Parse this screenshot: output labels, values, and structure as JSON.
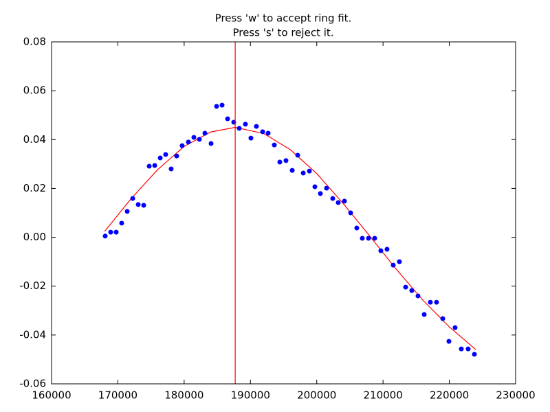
{
  "chart_data": {
    "type": "scatter",
    "title": [
      "Press 'w' to accept ring fit.",
      "Press 's' to reject it."
    ],
    "color": "#0000ff",
    "x": [
      168090,
      168920,
      169750,
      170580,
      171410,
      172240,
      173070,
      173900,
      174730,
      175560,
      176390,
      177210,
      178040,
      178870,
      179700,
      180640,
      181470,
      182300,
      183130,
      184060,
      184890,
      185720,
      186550,
      187480,
      188310,
      189240,
      190070,
      190900,
      191840,
      192670,
      193600,
      194430,
      195360,
      196300,
      197130,
      197960,
      198890,
      199720,
      200550,
      201480,
      202410,
      203240,
      204180,
      205110,
      206040,
      206870,
      207810,
      208740,
      209670,
      210600,
      211540,
      212470,
      213410,
      214340,
      215270,
      216210,
      217140,
      218070,
      219010,
      219940,
      220870,
      221810,
      222840,
      223780
    ],
    "y": [
      0.0005,
      0.0021,
      0.0021,
      0.0058,
      0.0106,
      0.0159,
      0.0134,
      0.0131,
      0.0291,
      0.0294,
      0.0325,
      0.0339,
      0.028,
      0.0333,
      0.0375,
      0.039,
      0.0409,
      0.0401,
      0.0426,
      0.0384,
      0.0536,
      0.0541,
      0.0485,
      0.0471,
      0.0446,
      0.0463,
      0.0406,
      0.0454,
      0.0432,
      0.0426,
      0.0378,
      0.0308,
      0.0314,
      0.0274,
      0.0336,
      0.0263,
      0.0271,
      0.0207,
      0.0179,
      0.0201,
      0.0159,
      0.0142,
      0.0148,
      0.01,
      0.0038,
      -0.0004,
      -0.0004,
      -0.0004,
      -0.0055,
      -0.0049,
      -0.0114,
      -0.01,
      -0.0204,
      -0.0218,
      -0.024,
      -0.0316,
      -0.0266,
      -0.0266,
      -0.0333,
      -0.0426,
      -0.037,
      -0.0457,
      -0.0457,
      -0.0479
    ],
    "fit": {
      "color": "#ff0000",
      "x": [
        168000,
        172000,
        176000,
        180000,
        184000,
        187700,
        192000,
        196000,
        200000,
        204000,
        208000,
        212000,
        216000,
        220000,
        224000
      ],
      "y": [
        0.0024,
        0.0158,
        0.0277,
        0.0372,
        0.0431,
        0.045,
        0.0425,
        0.0359,
        0.0261,
        0.0138,
        0.0005,
        -0.0131,
        -0.0257,
        -0.0367,
        -0.046
      ]
    },
    "vline": {
      "x": 187700,
      "color": "#ff0000"
    },
    "xlim": [
      160000,
      230000
    ],
    "xticks": [
      160000,
      170000,
      180000,
      190000,
      200000,
      210000,
      220000,
      230000
    ],
    "ylim": [
      -0.06,
      0.08
    ],
    "yticks": [
      -0.06,
      -0.04,
      -0.02,
      {
        "value": 0,
        "label": "0.00"
      },
      0.02,
      0.04,
      0.06,
      0.08
    ]
  }
}
